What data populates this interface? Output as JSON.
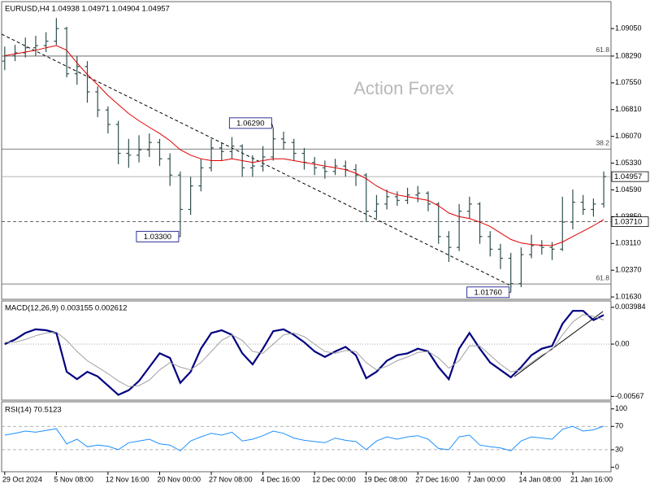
{
  "chart_data": [
    {
      "type": "ohlc",
      "title": "EURUSD,H4 1.04938 1.04971 1.04904 1.04957",
      "watermark": "Action Forex",
      "color": "#2f4f4f",
      "categories": [
        "29 Oct 2024",
        null,
        null,
        null,
        null,
        "5 Nov 08:00",
        null,
        null,
        null,
        null,
        "12 Nov 16:00",
        null,
        null,
        null,
        null,
        "20 Nov 00:00",
        null,
        null,
        null,
        null,
        "27 Nov 08:00",
        null,
        null,
        null,
        null,
        "4 Dec 16:00",
        null,
        null,
        null,
        null,
        "12 Dec 00:00",
        null,
        null,
        null,
        null,
        "19 Dec 08:00",
        null,
        null,
        null,
        null,
        "27 Dec 16:00",
        null,
        null,
        null,
        null,
        "7 Jan 00:00",
        null,
        null,
        null,
        null,
        "14 Jan 08:00",
        null,
        null,
        null,
        null,
        "21 Jan 16:00",
        null,
        null,
        null
      ],
      "open": [
        1.0815,
        1.083,
        1.0838,
        1.0852,
        1.0858,
        1.087,
        1.0905,
        1.078,
        1.08,
        1.073,
        1.068,
        1.064,
        1.056,
        1.0555,
        1.057,
        1.059,
        1.0545,
        1.05,
        1.0405,
        1.047,
        1.052,
        1.0575,
        1.0565,
        1.058,
        1.052,
        1.0525,
        1.055,
        1.06,
        1.059,
        1.056,
        1.0535,
        1.052,
        1.051,
        1.0525,
        1.0515,
        1.05,
        1.04,
        1.042,
        1.044,
        1.043,
        1.0445,
        1.045,
        1.042,
        1.033,
        1.03,
        1.04,
        1.042,
        1.033,
        1.0295,
        1.027,
        1.02,
        1.028,
        1.0305,
        1.03,
        1.0295,
        1.037,
        1.0425,
        1.0405,
        1.042
      ],
      "high": [
        1.0855,
        1.086,
        1.088,
        1.0885,
        1.0895,
        1.0934,
        1.091,
        1.083,
        1.0815,
        1.0745,
        1.069,
        1.065,
        1.06,
        1.061,
        1.0615,
        1.06,
        1.056,
        1.051,
        1.0495,
        1.0545,
        1.06,
        1.059,
        1.0605,
        1.0585,
        1.0555,
        1.058,
        1.0629,
        1.062,
        1.06,
        1.0575,
        1.055,
        1.054,
        1.0545,
        1.054,
        1.053,
        1.0505,
        1.0445,
        1.046,
        1.0455,
        1.0465,
        1.047,
        1.0455,
        1.0425,
        1.0345,
        1.042,
        1.044,
        1.0425,
        1.0345,
        1.031,
        1.0285,
        1.03,
        1.0335,
        1.032,
        1.0315,
        1.044,
        1.046,
        1.0445,
        1.0435,
        1.051
      ],
      "low": [
        1.079,
        1.0815,
        1.0825,
        1.083,
        1.084,
        1.086,
        1.077,
        1.075,
        1.07,
        1.066,
        1.0615,
        1.053,
        1.052,
        1.0535,
        1.055,
        1.0525,
        1.047,
        1.033,
        1.039,
        1.0455,
        1.051,
        1.054,
        1.0545,
        1.0495,
        1.0495,
        1.051,
        1.054,
        1.057,
        1.054,
        1.0515,
        1.05,
        1.049,
        1.05,
        1.0495,
        1.047,
        1.037,
        1.038,
        1.0405,
        1.0415,
        1.042,
        1.0425,
        1.04,
        1.031,
        1.026,
        1.029,
        1.038,
        1.031,
        1.0275,
        1.024,
        1.0176,
        1.019,
        1.027,
        1.028,
        1.0265,
        1.029,
        1.035,
        1.039,
        1.0385,
        1.041
      ],
      "close": [
        1.083,
        1.0838,
        1.0852,
        1.0858,
        1.087,
        1.0905,
        1.078,
        1.08,
        1.073,
        1.068,
        1.064,
        1.056,
        1.0555,
        1.057,
        1.059,
        1.0545,
        1.05,
        1.0405,
        1.047,
        1.052,
        1.0575,
        1.0565,
        1.058,
        1.052,
        1.0525,
        1.055,
        1.06,
        1.059,
        1.056,
        1.0535,
        1.052,
        1.051,
        1.0525,
        1.0515,
        1.05,
        1.04,
        1.042,
        1.044,
        1.043,
        1.0445,
        1.045,
        1.042,
        1.033,
        1.03,
        1.04,
        1.042,
        1.033,
        1.0295,
        1.027,
        1.02,
        1.028,
        1.0305,
        1.03,
        1.0295,
        1.037,
        1.0425,
        1.0405,
        1.042,
        1.04957
      ],
      "ma": {
        "color": "#e00000",
        "values": [
          1.083,
          1.0835,
          1.084,
          1.0845,
          1.0852,
          1.0858,
          1.0845,
          1.081,
          1.0778,
          1.075,
          1.072,
          1.0695,
          1.067,
          1.065,
          1.0632,
          1.0615,
          1.0595,
          1.057,
          1.0555,
          1.0545,
          1.054,
          1.054,
          1.0545,
          1.054,
          1.0535,
          1.054,
          1.0545,
          1.0545,
          1.054,
          1.0535,
          1.053,
          1.0525,
          1.052,
          1.0515,
          1.0505,
          1.049,
          1.047,
          1.0455,
          1.0445,
          1.044,
          1.0435,
          1.043,
          1.0415,
          1.0395,
          1.0385,
          1.038,
          1.037,
          1.0358,
          1.034,
          1.0322,
          1.0312,
          1.0308,
          1.0306,
          1.0305,
          1.0315,
          1.033,
          1.0345,
          1.036,
          1.0377
        ]
      },
      "ylim": [
        1.0161,
        1.0975
      ],
      "yticks": [
        {
          "value": 1.0905,
          "label": "1.09050"
        },
        {
          "value": 1.0829,
          "label": "1.08290"
        },
        {
          "value": 1.0755,
          "label": "1.07550"
        },
        {
          "value": 1.0681,
          "label": "1.06810"
        },
        {
          "value": 1.0607,
          "label": "1.06070"
        },
        {
          "value": 1.0533,
          "label": "1.05330"
        },
        {
          "value": 1.0459,
          "label": "1.04590"
        },
        {
          "value": 1.0385,
          "label": "1.03850"
        },
        {
          "value": 1.0311,
          "label": "1.03110"
        },
        {
          "value": 1.0237,
          "label": "1.02370"
        },
        {
          "value": 1.0163,
          "label": "1.01630"
        }
      ],
      "fib": [
        {
          "value": 1.0829,
          "label": "61.8"
        },
        {
          "value": 1.0572,
          "label": "38.2"
        },
        {
          "value": 1.0199,
          "label": "61.8"
        }
      ],
      "levels": [
        {
          "value": 1.04957,
          "label": "1.04957",
          "style": "solid"
        },
        {
          "value": 1.0371,
          "label": "1.03710",
          "style": "dashed"
        }
      ],
      "annotations": [
        {
          "value": 1.0629,
          "label": "1.06290",
          "at": "high"
        },
        {
          "value": 1.033,
          "label": "1.03300",
          "at": "low"
        },
        {
          "value": 1.0176,
          "label": "1.01760",
          "at": "low"
        }
      ]
    },
    {
      "type": "line",
      "title": "MACD(12,26,9) 0.003155 0.002612",
      "series": [
        {
          "color": "#000080",
          "width": 2.2,
          "values": [
            0,
            0.0005,
            0.0012,
            0.0016,
            0.0015,
            0.0012,
            -0.003,
            -0.0038,
            -0.003,
            -0.0035,
            -0.0045,
            -0.0055,
            -0.005,
            -0.004,
            -0.0025,
            -0.001,
            -0.0015,
            -0.0042,
            -0.003,
            -0.0005,
            0.0012,
            0.0015,
            0.001,
            -0.001,
            -0.0022,
            -0.0005,
            0.0014,
            0.0016,
            0.001,
            0.0002,
            -0.0008,
            -0.0014,
            -0.0008,
            -0.0003,
            -0.0012,
            -0.0037,
            -0.003,
            -0.0018,
            -0.0012,
            -0.001,
            -0.0005,
            -0.0008,
            -0.0025,
            -0.0038,
            -0.0005,
            0.0012,
            -0.0005,
            -0.002,
            -0.0028,
            -0.0036,
            -0.0025,
            -0.0012,
            -0.0005,
            -0.0002,
            0.0022,
            0.0036,
            0.0036,
            0.0026,
            0.003155
          ]
        },
        {
          "color": "#a0a0a0",
          "width": 1,
          "values": [
            0.0002,
            0.0002,
            0.0005,
            0.0009,
            0.0012,
            0.0013,
            0.0004,
            -0.0008,
            -0.0018,
            -0.0025,
            -0.0032,
            -0.004,
            -0.0046,
            -0.0045,
            -0.0039,
            -0.0028,
            -0.002,
            -0.0025,
            -0.0028,
            -0.002,
            -0.0008,
            0.0004,
            0.001,
            0.0004,
            -0.0008,
            -0.001,
            0,
            0.001,
            0.0012,
            0.0008,
            0,
            -0.0008,
            -0.001,
            -0.0007,
            -0.0008,
            -0.002,
            -0.0028,
            -0.0024,
            -0.0018,
            -0.0014,
            -0.0009,
            -0.0008,
            -0.0015,
            -0.0026,
            -0.0018,
            -0.0002,
            -0.0002,
            -0.0012,
            -0.0022,
            -0.003,
            -0.0028,
            -0.002,
            -0.0012,
            -0.0006,
            0.001,
            0.0024,
            0.0032,
            0.003,
            0.002612
          ]
        }
      ],
      "ylim": [
        -0.0059,
        0.0045
      ],
      "yticks": [
        0.003984,
        {
          "value": 0,
          "label": "0.00"
        },
        -0.00567
      ],
      "levels": [
        0
      ],
      "level_style": "dotted"
    },
    {
      "type": "line",
      "title": "RSI(14) 70.5123",
      "series": [
        {
          "color": "#1e90ff",
          "width": 1,
          "values": [
            55,
            58,
            62,
            60,
            63,
            66,
            40,
            48,
            35,
            38,
            36,
            30,
            42,
            45,
            48,
            40,
            38,
            28,
            45,
            52,
            58,
            55,
            60,
            45,
            48,
            54,
            62,
            58,
            50,
            46,
            44,
            42,
            50,
            46,
            44,
            30,
            45,
            52,
            48,
            52,
            54,
            48,
            32,
            30,
            52,
            55,
            38,
            35,
            33,
            28,
            45,
            52,
            50,
            48,
            65,
            70,
            62,
            64,
            70.5123
          ]
        }
      ],
      "ylim": [
        -5,
        108
      ],
      "yticks": [
        100,
        70,
        30,
        0
      ],
      "levels": [
        70,
        30
      ],
      "level_style": "dashed"
    }
  ]
}
